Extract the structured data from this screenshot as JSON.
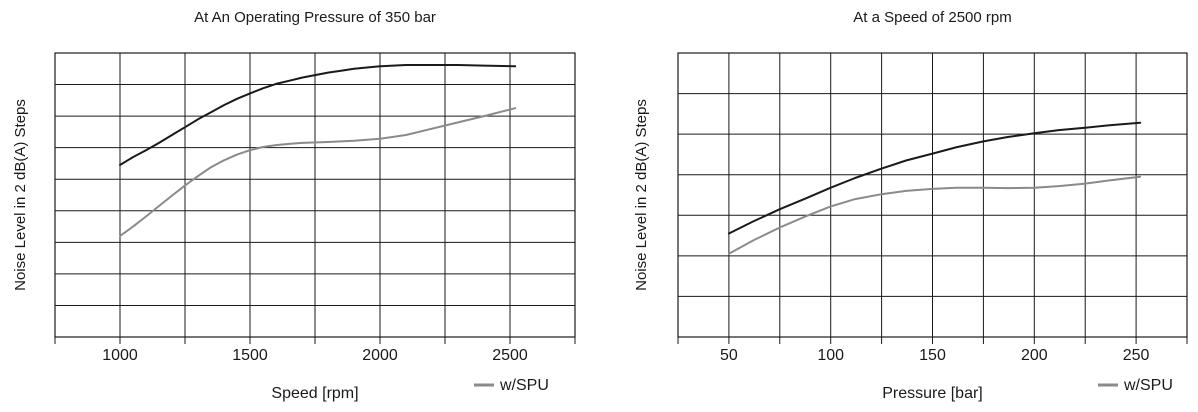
{
  "chart_data": [
    {
      "type": "line",
      "title": "At An Operating Pressure of 350 bar",
      "xlabel": "Speed [rpm]",
      "ylabel": "Noise Level in 2 dB(A) Steps",
      "xlim": [
        750,
        2750
      ],
      "ylim": [
        0,
        9
      ],
      "x_ticks": [
        1000,
        1500,
        2000,
        2500
      ],
      "x_tick_labels": [
        "1000",
        "1500",
        "2000",
        "2500"
      ],
      "x_grid": [
        750,
        1000,
        1250,
        1500,
        1750,
        2000,
        2250,
        2500,
        2750
      ],
      "y_grid": [
        0,
        1,
        2,
        3,
        4,
        5,
        6,
        7,
        8,
        9
      ],
      "grid": true,
      "legend": [
        {
          "label": "w/SPU",
          "color": "#8a8a8a"
        }
      ],
      "legend_position": "bottom-right",
      "series": [
        {
          "color": "#1a1a1a",
          "x": [
            1000,
            1050,
            1100,
            1150,
            1200,
            1250,
            1300,
            1350,
            1400,
            1450,
            1500,
            1550,
            1600,
            1650,
            1700,
            1750,
            1800,
            1850,
            1900,
            1950,
            2000,
            2050,
            2100,
            2200,
            2300,
            2400,
            2520
          ],
          "y": [
            5.45,
            5.7,
            5.92,
            6.15,
            6.4,
            6.65,
            6.9,
            7.12,
            7.35,
            7.55,
            7.72,
            7.88,
            8.02,
            8.12,
            8.22,
            8.3,
            8.38,
            8.44,
            8.5,
            8.54,
            8.58,
            8.6,
            8.62,
            8.62,
            8.62,
            8.6,
            8.58
          ]
        },
        {
          "name": "w/SPU",
          "color": "#8a8a8a",
          "x": [
            1000,
            1050,
            1100,
            1150,
            1200,
            1250,
            1300,
            1350,
            1400,
            1450,
            1500,
            1550,
            1600,
            1650,
            1700,
            1800,
            1900,
            2000,
            2100,
            2200,
            2300,
            2400,
            2520
          ],
          "y": [
            3.2,
            3.5,
            3.82,
            4.15,
            4.48,
            4.8,
            5.1,
            5.38,
            5.6,
            5.78,
            5.92,
            6.02,
            6.08,
            6.12,
            6.15,
            6.18,
            6.22,
            6.28,
            6.4,
            6.6,
            6.8,
            7.0,
            7.25
          ]
        }
      ]
    },
    {
      "type": "line",
      "title": "At a Speed of 2500 rpm",
      "xlabel": "Pressure [bar]",
      "ylabel": "Noise Level in 2 dB(A) Steps",
      "xlim": [
        25,
        275
      ],
      "ylim": [
        0,
        7
      ],
      "x_ticks": [
        50,
        100,
        150,
        200,
        250
      ],
      "x_tick_labels": [
        "50",
        "100",
        "150",
        "200",
        "250"
      ],
      "x_grid": [
        25,
        50,
        75,
        100,
        125,
        150,
        175,
        200,
        225,
        250,
        275
      ],
      "y_grid": [
        0,
        1,
        2,
        3,
        4,
        5,
        6,
        7
      ],
      "grid": true,
      "legend": [
        {
          "label": "w/SPU",
          "color": "#8a8a8a"
        }
      ],
      "legend_position": "bottom-right",
      "series": [
        {
          "color": "#1a1a1a",
          "x": [
            50,
            62,
            75,
            88,
            100,
            112,
            125,
            137,
            150,
            162,
            175,
            187,
            200,
            212,
            225,
            237,
            252
          ],
          "y": [
            2.55,
            2.85,
            3.15,
            3.42,
            3.68,
            3.92,
            4.15,
            4.35,
            4.52,
            4.68,
            4.82,
            4.93,
            5.02,
            5.1,
            5.16,
            5.22,
            5.28
          ]
        },
        {
          "name": "w/SPU",
          "color": "#8a8a8a",
          "x": [
            50,
            62,
            75,
            88,
            100,
            112,
            125,
            137,
            150,
            162,
            175,
            187,
            200,
            212,
            225,
            237,
            252
          ],
          "y": [
            2.05,
            2.38,
            2.7,
            2.98,
            3.22,
            3.4,
            3.52,
            3.6,
            3.65,
            3.68,
            3.68,
            3.67,
            3.68,
            3.72,
            3.78,
            3.86,
            3.95
          ]
        }
      ]
    }
  ]
}
